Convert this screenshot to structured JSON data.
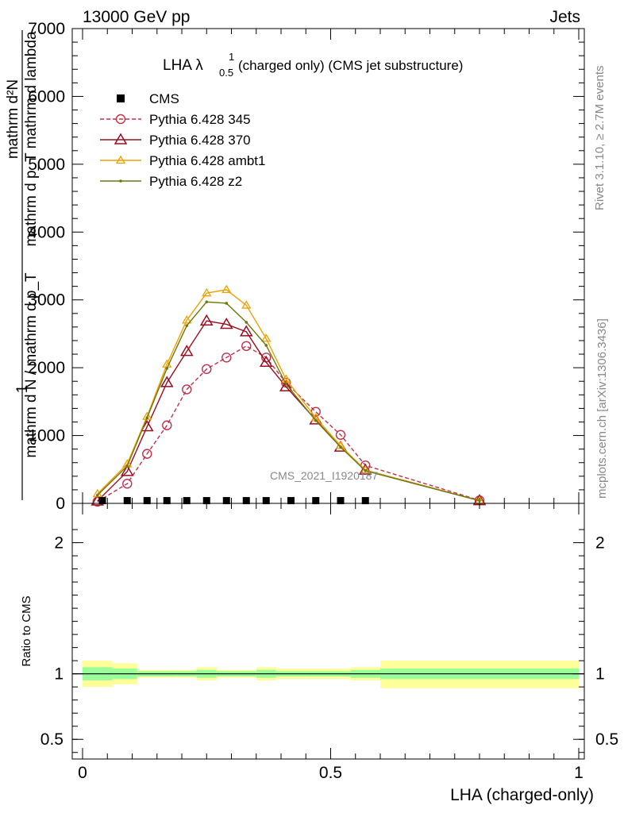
{
  "header": {
    "left": "13000 GeV pp",
    "right": "Jets"
  },
  "chart_data": {
    "type": "line",
    "title": "LHA λ",
    "title_sup": "1",
    "title_sub": "0.5",
    "title_rest": "(charged only) (CMS jet substructure)",
    "ylabel_lines": [
      "mathrm d²N",
      "mathrm d p",
      "T",
      "mathrm d lambda",
      "1",
      "mathrm d N / mathrm d p",
      "mathrm d N / mathrm d p"
    ],
    "ylabel_num": "mathrm d²N",
    "ylabel_num_sub": "mathrm d p_T mathrm d lambda",
    "ylabel_den": "mathrm d N / mathrm d p_T",
    "ylabel_one": "1",
    "xlabel": "LHA (charged-only)",
    "ratio_ylabel": "Ratio to CMS",
    "watermark": "CMS_2021_I1920187",
    "side_right_top": "Rivet 3.1.10, ≥ 2.7M events",
    "side_right_bottom": "mcplots.cern.ch [arXiv:1306.3436]",
    "xlim": [
      0,
      1
    ],
    "ylim": [
      0,
      7000
    ],
    "ratio_ylim": [
      0.35,
      2.3
    ],
    "xticks": [
      0,
      0.5,
      1
    ],
    "xtick_labels": [
      "0",
      "0.5",
      "1"
    ],
    "yticks": [
      0,
      1000,
      2000,
      3000,
      4000,
      5000,
      6000,
      7000
    ],
    "ytick_labels": [
      "0",
      "1000",
      "2000",
      "3000",
      "4000",
      "5000",
      "6000",
      "7000"
    ],
    "ratio_yticks": [
      0.5,
      1,
      2
    ],
    "ratio_ytick_labels": [
      "0.5",
      "1",
      "2"
    ],
    "legend_position": "top-left",
    "cms_points": {
      "name": "CMS",
      "x": [
        0.04,
        0.09,
        0.13,
        0.17,
        0.21,
        0.25,
        0.29,
        0.33,
        0.37,
        0.42,
        0.47,
        0.52,
        0.57
      ],
      "y": [
        5,
        5,
        5,
        5,
        5,
        5,
        5,
        5,
        5,
        5,
        5,
        5,
        5
      ]
    },
    "series": [
      {
        "name": "Pythia 6.428 345",
        "color": "#c0304a",
        "marker": "circle-open",
        "dashed": true,
        "x": [
          0.03,
          0.09,
          0.13,
          0.17,
          0.21,
          0.25,
          0.29,
          0.33,
          0.37,
          0.41,
          0.47,
          0.52,
          0.57,
          0.8
        ],
        "y": [
          25,
          290,
          730,
          1150,
          1680,
          1980,
          2150,
          2320,
          2150,
          1780,
          1350,
          1010,
          560,
          45
        ]
      },
      {
        "name": "Pythia 6.428 370",
        "color": "#9b0d20",
        "marker": "triangle-open",
        "dashed": false,
        "x": [
          0.03,
          0.09,
          0.13,
          0.17,
          0.21,
          0.25,
          0.29,
          0.33,
          0.37,
          0.41,
          0.47,
          0.52,
          0.57,
          0.8
        ],
        "y": [
          35,
          470,
          1130,
          1780,
          2240,
          2690,
          2640,
          2530,
          2080,
          1720,
          1230,
          830,
          490,
          40
        ]
      },
      {
        "name": "Pythia 6.428 ambt1",
        "color": "#f0a000",
        "marker": "triangle-small",
        "dashed": false,
        "x": [
          0.03,
          0.09,
          0.13,
          0.17,
          0.21,
          0.25,
          0.29,
          0.33,
          0.37,
          0.41,
          0.47,
          0.52,
          0.57,
          0.8
        ],
        "y": [
          140,
          580,
          1280,
          2050,
          2700,
          3100,
          3150,
          2920,
          2430,
          1830,
          1260,
          850,
          490,
          40
        ]
      },
      {
        "name": "Pythia 6.428 z2",
        "color": "#6b7a0a",
        "marker": "dot",
        "dashed": false,
        "x": [
          0.03,
          0.09,
          0.13,
          0.17,
          0.21,
          0.25,
          0.29,
          0.33,
          0.37,
          0.41,
          0.47,
          0.52,
          0.57,
          0.8
        ],
        "y": [
          120,
          550,
          1260,
          1990,
          2620,
          2970,
          2950,
          2670,
          2330,
          1760,
          1220,
          830,
          480,
          40
        ]
      }
    ],
    "ratio_bands": {
      "edges": [
        0,
        0.06,
        0.11,
        0.19,
        0.23,
        0.27,
        0.31,
        0.35,
        0.39,
        0.45,
        0.54,
        0.6,
        1.0
      ],
      "green_lo": [
        0.95,
        0.96,
        0.98,
        0.98,
        0.97,
        0.98,
        0.98,
        0.97,
        0.98,
        0.98,
        0.97,
        0.96,
        0.83
      ],
      "green_hi": [
        1.05,
        1.04,
        1.02,
        1.02,
        1.03,
        1.02,
        1.02,
        1.03,
        1.02,
        1.02,
        1.03,
        1.04,
        1.26
      ],
      "yellow_lo": [
        0.9,
        0.92,
        0.97,
        0.97,
        0.95,
        0.97,
        0.97,
        0.95,
        0.96,
        0.96,
        0.95,
        0.89,
        0.58
      ],
      "yellow_hi": [
        1.1,
        1.08,
        1.03,
        1.03,
        1.05,
        1.03,
        1.03,
        1.05,
        1.04,
        1.04,
        1.05,
        1.1,
        1.53
      ]
    },
    "colors": {
      "green": "#99ff99",
      "yellow": "#ffff99"
    }
  }
}
